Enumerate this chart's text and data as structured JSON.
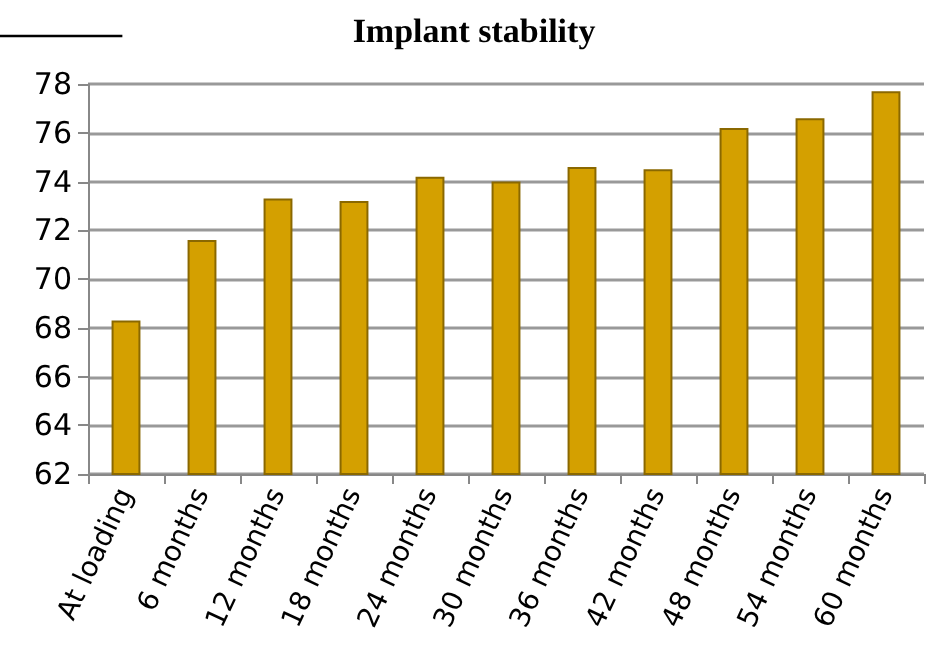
{
  "chart_data": {
    "type": "bar",
    "title": "Implant stability",
    "categories": [
      "At loading",
      "6 months",
      "12 months",
      "18 months",
      "24 months",
      "30 months",
      "36 months",
      "42 months",
      "48 months",
      "54 months",
      "60 months"
    ],
    "values": [
      68.3,
      71.6,
      73.3,
      73.2,
      74.2,
      74.0,
      74.6,
      74.5,
      76.2,
      76.6,
      77.7
    ],
    "color": "#d4a000",
    "ylim": [
      62,
      78
    ],
    "yticks": [
      62,
      64,
      66,
      68,
      70,
      72,
      74,
      76,
      78
    ],
    "grid": "y"
  }
}
